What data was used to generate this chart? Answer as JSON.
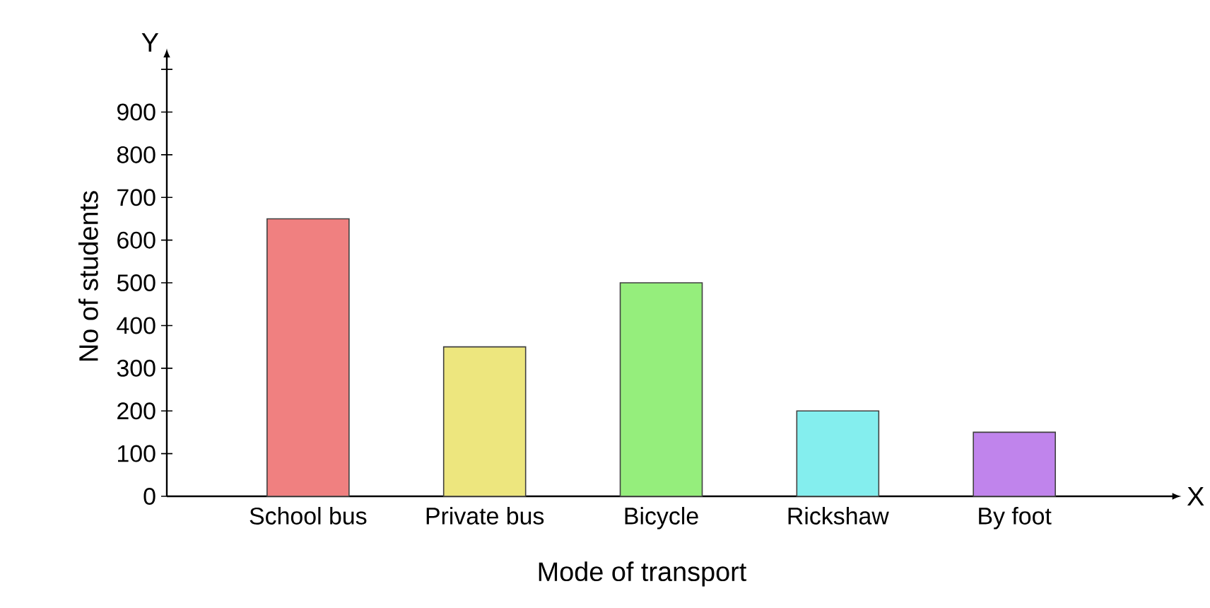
{
  "chart_data": {
    "type": "bar",
    "xlabel": "Mode of transport",
    "ylabel": "No of students",
    "categories": [
      "School bus",
      "Private bus",
      "Bicycle",
      "Rickshaw",
      "By foot"
    ],
    "values": [
      650,
      350,
      500,
      200,
      150
    ],
    "colors": [
      "#f08080",
      "#ede67e",
      "#95ee7c",
      "#84eeee",
      "#c084ec"
    ],
    "ylim": [
      0,
      1030
    ],
    "yticks": [
      0,
      100,
      200,
      300,
      400,
      500,
      600,
      700,
      800,
      900,
      {
        "value": 1000,
        "label": null
      }
    ],
    "annotations": [
      "Y",
      "X"
    ]
  }
}
